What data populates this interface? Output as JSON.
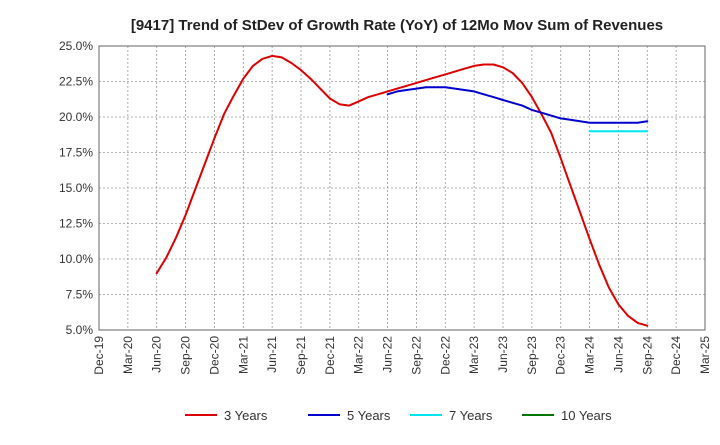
{
  "chart_data": {
    "type": "line",
    "title": "[9417]  Trend of StDev of Growth Rate (YoY) of 12Mo Mov Sum of Revenues",
    "xlabel": "",
    "ylabel": "",
    "ylim": [
      5.0,
      25.0
    ],
    "y_ticks": [
      "25.0%",
      "22.5%",
      "20.0%",
      "17.5%",
      "15.0%",
      "12.5%",
      "10.0%",
      "7.5%",
      "5.0%"
    ],
    "x_ticks": [
      "Dec-19",
      "Mar-20",
      "Jun-20",
      "Sep-20",
      "Dec-20",
      "Mar-21",
      "Jun-21",
      "Sep-21",
      "Dec-21",
      "Mar-22",
      "Jun-22",
      "Sep-22",
      "Dec-22",
      "Mar-23",
      "Jun-23",
      "Sep-23",
      "Dec-23",
      "Mar-24",
      "Jun-24",
      "Sep-24",
      "Dec-24",
      "Mar-25"
    ],
    "grid": true,
    "legend_position": "bottom",
    "series": [
      {
        "name": "3 Years",
        "color": "#dd0000",
        "points": [
          [
            6,
            9.0
          ],
          [
            7,
            10.1
          ],
          [
            8,
            11.5
          ],
          [
            9,
            13.1
          ],
          [
            10,
            14.9
          ],
          [
            11,
            16.7
          ],
          [
            12,
            18.5
          ],
          [
            13,
            20.2
          ],
          [
            14,
            21.5
          ],
          [
            15,
            22.7
          ],
          [
            16,
            23.6
          ],
          [
            17,
            24.1
          ],
          [
            18,
            24.3
          ],
          [
            19,
            24.2
          ],
          [
            20,
            23.8
          ],
          [
            21,
            23.3
          ],
          [
            22,
            22.7
          ],
          [
            23,
            22.0
          ],
          [
            24,
            21.3
          ],
          [
            25,
            20.9
          ],
          [
            26,
            20.8
          ],
          [
            27,
            21.1
          ],
          [
            28,
            21.4
          ],
          [
            29,
            21.6
          ],
          [
            30,
            21.8
          ],
          [
            31,
            22.0
          ],
          [
            32,
            22.2
          ],
          [
            33,
            22.4
          ],
          [
            34,
            22.6
          ],
          [
            35,
            22.8
          ],
          [
            36,
            23.0
          ],
          [
            37,
            23.2
          ],
          [
            38,
            23.4
          ],
          [
            39,
            23.6
          ],
          [
            40,
            23.7
          ],
          [
            41,
            23.7
          ],
          [
            42,
            23.5
          ],
          [
            43,
            23.1
          ],
          [
            44,
            22.4
          ],
          [
            45,
            21.4
          ],
          [
            46,
            20.2
          ],
          [
            47,
            18.9
          ],
          [
            48,
            17.1
          ],
          [
            49,
            15.2
          ],
          [
            50,
            13.3
          ],
          [
            51,
            11.4
          ],
          [
            52,
            9.6
          ],
          [
            53,
            8.0
          ],
          [
            54,
            6.8
          ],
          [
            55,
            6.0
          ],
          [
            56,
            5.5
          ],
          [
            57,
            5.3
          ]
        ]
      },
      {
        "name": "5 Years",
        "color": "#0000cc",
        "points": [
          [
            30,
            21.6
          ],
          [
            31,
            21.8
          ],
          [
            32,
            21.9
          ],
          [
            33,
            22.0
          ],
          [
            34,
            22.1
          ],
          [
            35,
            22.1
          ],
          [
            36,
            22.1
          ],
          [
            37,
            22.0
          ],
          [
            38,
            21.9
          ],
          [
            39,
            21.8
          ],
          [
            40,
            21.6
          ],
          [
            41,
            21.4
          ],
          [
            42,
            21.2
          ],
          [
            43,
            21.0
          ],
          [
            44,
            20.8
          ],
          [
            45,
            20.5
          ],
          [
            46,
            20.3
          ],
          [
            47,
            20.1
          ],
          [
            48,
            19.9
          ],
          [
            49,
            19.8
          ],
          [
            50,
            19.7
          ],
          [
            51,
            19.6
          ],
          [
            52,
            19.6
          ],
          [
            53,
            19.6
          ],
          [
            54,
            19.6
          ],
          [
            55,
            19.6
          ],
          [
            56,
            19.6
          ],
          [
            57,
            19.7
          ]
        ]
      },
      {
        "name": "7 Years",
        "color": "#00e5ee",
        "points": [
          [
            51,
            19.0
          ],
          [
            52,
            19.0
          ],
          [
            53,
            19.0
          ],
          [
            54,
            19.0
          ],
          [
            55,
            19.0
          ],
          [
            56,
            19.0
          ],
          [
            57,
            19.0
          ]
        ]
      },
      {
        "name": "10 Years",
        "color": "#007700",
        "points": []
      }
    ]
  }
}
